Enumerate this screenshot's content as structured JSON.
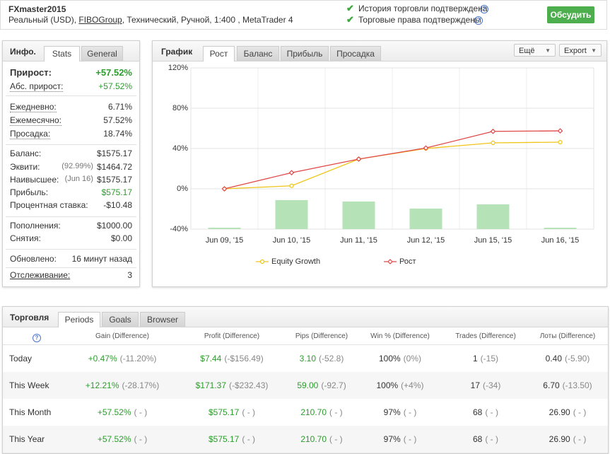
{
  "header": {
    "title": "FXmaster2015",
    "account": [
      "Реальный (USD), ",
      "FIBOGroup",
      ", Технический, Ручной, 1:400 , MetaTrader 4"
    ],
    "verified": [
      "История торговли подтверждена",
      "Торговые права подтверждены"
    ],
    "help": "?",
    "button": "Обсудить"
  },
  "info": {
    "title": "Инфо.",
    "tabs": [
      "Stats",
      "General"
    ],
    "gain": {
      "label": "Прирост:",
      "value": "+57.52%",
      "color": "#2e9b2e"
    },
    "groups": [
      [
        {
          "label": "Абс. прирост:",
          "value": "+57.52%",
          "color": "#2e9b2e"
        }
      ],
      [
        {
          "label": "Ежедневно:",
          "value": "6.71%"
        },
        {
          "label": "Ежемесячно:",
          "value": "57.52%"
        },
        {
          "label": "Просадка:",
          "value": "18.74%"
        }
      ],
      [
        {
          "label": "Баланс:",
          "value": "$1575.17"
        },
        {
          "label": "Эквити:",
          "note": "(92.99%)",
          "value": "$1464.72"
        },
        {
          "label": "Наивысшее:",
          "note": "(Jun 16)",
          "value": "$1575.17"
        },
        {
          "label": "Прибыль:",
          "value": "$575.17",
          "color": "#2e9b2e"
        },
        {
          "label": "Процентная ставка:",
          "value": "-$10.48"
        }
      ],
      [
        {
          "label": "Пополнения:",
          "value": "$1000.00"
        },
        {
          "label": "Снятия:",
          "value": "$0.00"
        }
      ],
      [
        {
          "label": "Обновлено:",
          "value": "16 минут назад"
        },
        {
          "label": "Отслеживание:",
          "value": "3"
        }
      ]
    ]
  },
  "chart_data": {
    "type": "line",
    "title": "График",
    "tabs": [
      "Рост",
      "Баланс",
      "Прибыль",
      "Просадка"
    ],
    "buttons": [
      "Ещё",
      "Export"
    ],
    "categories": [
      "Jun 09, '15",
      "Jun 10, '15",
      "Jun 11, '15",
      "Jun 12, '15",
      "Jun 15, '15",
      "Jun 16, '15"
    ],
    "ylim": [
      -40,
      120
    ],
    "yticks": [
      {
        "value": -40,
        "label": "-40%"
      },
      {
        "value": 0,
        "label": "0%"
      },
      {
        "value": 40,
        "label": "40%"
      },
      {
        "value": 80,
        "label": "80%"
      },
      {
        "value": 120,
        "label": "120%"
      }
    ],
    "grid": true,
    "series": [
      {
        "type": "bar",
        "color": "#b5e3b7",
        "values": [
          -38.6,
          -11.2,
          -12.6,
          -19.6,
          -15.4,
          -38.6
        ]
      },
      {
        "name": "Equity Growth",
        "color": "#f0c419",
        "marker": "circle",
        "values": [
          0,
          3,
          29.5,
          40,
          45.6,
          46.3
        ]
      },
      {
        "name": "Рост",
        "color": "#e04848",
        "marker": "diamond",
        "values": [
          0,
          16,
          29.5,
          40.5,
          57,
          57.5
        ]
      }
    ]
  },
  "trading": {
    "title": "Торговля",
    "tabs": [
      "Periods",
      "Goals",
      "Browser"
    ],
    "help": "?",
    "columns": [
      "Gain (Difference)",
      "Profit (Difference)",
      "Pips (Difference)",
      "Win % (Difference)",
      "Trades (Difference)",
      "Лоты (Difference)"
    ],
    "value_colors": [
      "#2e9b2e",
      "#2e9b2e",
      "#2e9b2e",
      "#333333",
      "#333333",
      "#333333"
    ],
    "rows": [
      {
        "label": "Today",
        "cells": [
          {
            "value": "+0.47%",
            "diff": "(-11.20%)"
          },
          {
            "value": "$7.44",
            "diff": "(-$156.49)"
          },
          {
            "value": "3.10",
            "diff": "(-52.8)"
          },
          {
            "value": "100%",
            "diff": "(0%)"
          },
          {
            "value": "1",
            "diff": "(-15)"
          },
          {
            "value": "0.40",
            "diff": "(-5.90)"
          }
        ]
      },
      {
        "label": "This Week",
        "cells": [
          {
            "value": "+12.21%",
            "diff": "(-28.17%)"
          },
          {
            "value": "$171.37",
            "diff": "(-$232.43)"
          },
          {
            "value": "59.00",
            "diff": "(-92.7)"
          },
          {
            "value": "100%",
            "diff": "(+4%)"
          },
          {
            "value": "17",
            "diff": "(-34)"
          },
          {
            "value": "6.70",
            "diff": "(-13.50)"
          }
        ]
      },
      {
        "label": "This Month",
        "cells": [
          {
            "value": "+57.52%",
            "diff": "( - )"
          },
          {
            "value": "$575.17",
            "diff": "( - )"
          },
          {
            "value": "210.70",
            "diff": "( - )"
          },
          {
            "value": "97%",
            "diff": "( - )"
          },
          {
            "value": "68",
            "diff": "( - )"
          },
          {
            "value": "26.90",
            "diff": "( - )"
          }
        ]
      },
      {
        "label": "This Year",
        "cells": [
          {
            "value": "+57.52%",
            "diff": "( - )"
          },
          {
            "value": "$575.17",
            "diff": "( - )"
          },
          {
            "value": "210.70",
            "diff": "( - )"
          },
          {
            "value": "97%",
            "diff": "( - )"
          },
          {
            "value": "68",
            "diff": "( - )"
          },
          {
            "value": "26.90",
            "diff": "( - )"
          }
        ]
      }
    ]
  }
}
